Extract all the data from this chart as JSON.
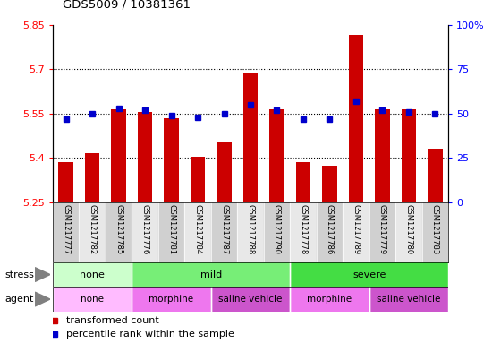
{
  "title": "GDS5009 / 10381361",
  "samples": [
    "GSM1217777",
    "GSM1217782",
    "GSM1217785",
    "GSM1217776",
    "GSM1217781",
    "GSM1217784",
    "GSM1217787",
    "GSM1217788",
    "GSM1217790",
    "GSM1217778",
    "GSM1217786",
    "GSM1217789",
    "GSM1217779",
    "GSM1217780",
    "GSM1217783"
  ],
  "transformed_counts": [
    5.385,
    5.415,
    5.565,
    5.555,
    5.535,
    5.405,
    5.455,
    5.685,
    5.565,
    5.385,
    5.375,
    5.815,
    5.565,
    5.565,
    5.43
  ],
  "percentile_ranks": [
    47,
    50,
    53,
    52,
    49,
    48,
    50,
    55,
    52,
    47,
    47,
    57,
    52,
    51,
    50
  ],
  "ylim_left": [
    5.25,
    5.85
  ],
  "ylim_right": [
    0,
    100
  ],
  "yticks_left": [
    5.25,
    5.4,
    5.55,
    5.7,
    5.85
  ],
  "ytick_labels_left": [
    "5.25",
    "5.4",
    "5.55",
    "5.7",
    "5.85"
  ],
  "yticks_right": [
    0,
    25,
    50,
    75,
    100
  ],
  "ytick_labels_right": [
    "0",
    "25",
    "50",
    "75",
    "100%"
  ],
  "bar_color": "#cc0000",
  "dot_color": "#0000cc",
  "stress_groups": [
    {
      "label": "none",
      "start": 0,
      "end": 3,
      "color": "#ccffcc"
    },
    {
      "label": "mild",
      "start": 3,
      "end": 9,
      "color": "#77ee77"
    },
    {
      "label": "severe",
      "start": 9,
      "end": 15,
      "color": "#44dd44"
    }
  ],
  "agent_groups": [
    {
      "label": "none",
      "start": 0,
      "end": 3,
      "color": "#ffbbff"
    },
    {
      "label": "morphine",
      "start": 3,
      "end": 6,
      "color": "#ee77ee"
    },
    {
      "label": "saline vehicle",
      "start": 6,
      "end": 9,
      "color": "#cc55cc"
    },
    {
      "label": "morphine",
      "start": 9,
      "end": 12,
      "color": "#ee77ee"
    },
    {
      "label": "saline vehicle",
      "start": 12,
      "end": 15,
      "color": "#cc55cc"
    }
  ],
  "legend_items": [
    {
      "label": "transformed count",
      "color": "#cc0000"
    },
    {
      "label": "percentile rank within the sample",
      "color": "#0000cc"
    }
  ]
}
